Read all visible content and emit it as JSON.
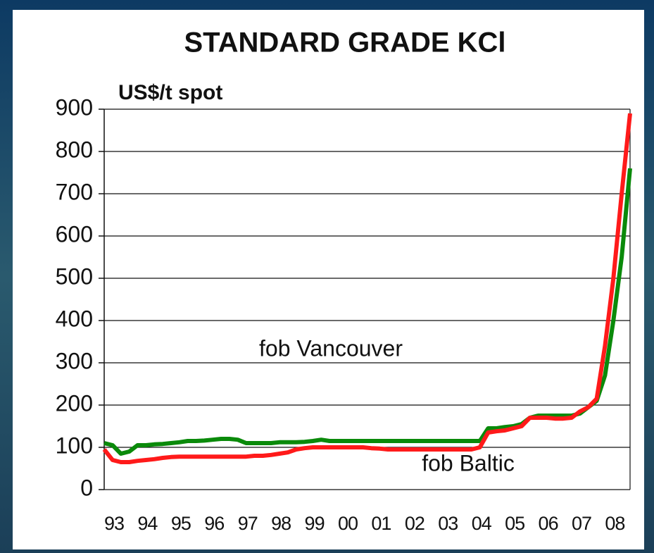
{
  "chart_data": {
    "type": "line",
    "title": "STANDARD GRADE KCl",
    "y_label": "US$/t spot",
    "annotations": [
      "fob Vancouver",
      "fob Baltic"
    ],
    "categories": [
      "93",
      null,
      null,
      null,
      "94",
      null,
      null,
      null,
      "95",
      null,
      null,
      null,
      "96",
      null,
      null,
      null,
      "97",
      null,
      null,
      null,
      "98",
      null,
      null,
      null,
      "99",
      null,
      null,
      null,
      "00",
      null,
      null,
      null,
      "01",
      null,
      null,
      null,
      "02",
      null,
      null,
      null,
      "03",
      null,
      null,
      null,
      "04",
      null,
      null,
      null,
      "05",
      null,
      null,
      null,
      "06",
      null,
      null,
      null,
      "07",
      null,
      null,
      null,
      "08",
      null,
      null,
      null
    ],
    "series": [
      {
        "name": "fob Vancouver",
        "color": "#0a8a0a",
        "values": [
          110,
          105,
          85,
          90,
          105,
          105,
          107,
          108,
          110,
          112,
          115,
          115,
          116,
          118,
          120,
          120,
          118,
          110,
          110,
          110,
          110,
          112,
          112,
          112,
          113,
          115,
          118,
          115,
          115,
          115,
          115,
          115,
          115,
          115,
          115,
          115,
          115,
          115,
          115,
          115,
          115,
          115,
          115,
          115,
          115,
          115,
          145,
          145,
          148,
          150,
          155,
          170,
          175,
          175,
          175,
          175,
          175,
          180,
          195,
          210,
          270,
          400,
          550,
          760
        ]
      },
      {
        "name": "fob Baltic",
        "color": "#ff1a1a",
        "values": [
          95,
          70,
          65,
          65,
          68,
          70,
          72,
          75,
          77,
          78,
          78,
          78,
          78,
          78,
          78,
          78,
          78,
          78,
          80,
          80,
          82,
          85,
          88,
          95,
          98,
          100,
          100,
          100,
          100,
          100,
          100,
          100,
          98,
          97,
          95,
          95,
          95,
          95,
          95,
          95,
          95,
          95,
          95,
          95,
          95,
          100,
          135,
          138,
          140,
          145,
          150,
          170,
          170,
          170,
          168,
          168,
          170,
          185,
          195,
          215,
          340,
          500,
          700,
          890
        ]
      }
    ],
    "ylim": [
      0,
      900
    ],
    "yticks": [
      0,
      100,
      200,
      300,
      400,
      500,
      600,
      700,
      800,
      900
    ],
    "grid": true
  }
}
